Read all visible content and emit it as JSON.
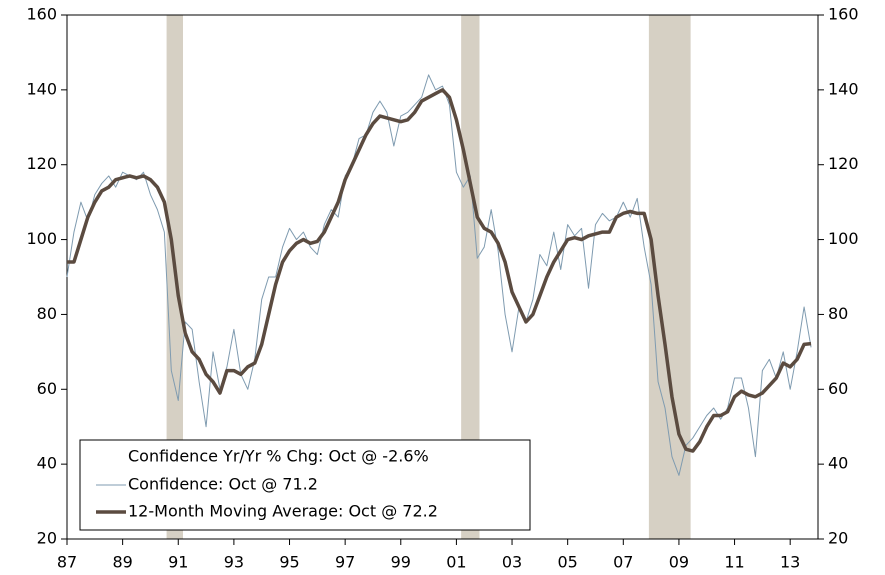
{
  "chart_data": {
    "type": "line",
    "x": [
      1987,
      1987.25,
      1987.5,
      1987.75,
      1988,
      1988.25,
      1988.5,
      1988.75,
      1989,
      1989.25,
      1989.5,
      1989.75,
      1990,
      1990.25,
      1990.5,
      1990.75,
      1991,
      1991.25,
      1991.5,
      1991.75,
      1992,
      1992.25,
      1992.5,
      1992.75,
      1993,
      1993.25,
      1993.5,
      1993.75,
      1994,
      1994.25,
      1994.5,
      1994.75,
      1995,
      1995.25,
      1995.5,
      1995.75,
      1996,
      1996.25,
      1996.5,
      1996.75,
      1997,
      1997.25,
      1997.5,
      1997.75,
      1998,
      1998.25,
      1998.5,
      1998.75,
      1999,
      1999.25,
      1999.5,
      1999.75,
      2000,
      2000.25,
      2000.5,
      2000.75,
      2001,
      2001.25,
      2001.5,
      2001.75,
      2002,
      2002.25,
      2002.5,
      2002.75,
      2003,
      2003.25,
      2003.5,
      2003.75,
      2004,
      2004.25,
      2004.5,
      2004.75,
      2005,
      2005.25,
      2005.5,
      2005.75,
      2006,
      2006.25,
      2006.5,
      2006.75,
      2007,
      2007.25,
      2007.5,
      2007.75,
      2008,
      2008.25,
      2008.5,
      2008.75,
      2009,
      2009.25,
      2009.5,
      2009.75,
      2010,
      2010.25,
      2010.5,
      2010.75,
      2011,
      2011.25,
      2011.5,
      2011.75,
      2012,
      2012.25,
      2012.5,
      2012.75,
      2013,
      2013.25,
      2013.5,
      2013.75
    ],
    "legend_title": "Confidence Yr/Yr % Chg: Oct @ -2.6%",
    "series": [
      {
        "name": "Confidence: Oct @ 71.2",
        "color": "#7f9bb0",
        "width": 1,
        "values": [
          90,
          102,
          110,
          105,
          112,
          115,
          117,
          114,
          118,
          117,
          116,
          118,
          112,
          108,
          102,
          65,
          57,
          78,
          76,
          62,
          50,
          70,
          60,
          66,
          76,
          64,
          60,
          68,
          84,
          90,
          90,
          98,
          103,
          100,
          102,
          98,
          96,
          104,
          108,
          106,
          117,
          120,
          127,
          128,
          134,
          137,
          134,
          125,
          133,
          134,
          136,
          138,
          144,
          140,
          141,
          136,
          118,
          114,
          117,
          95,
          98,
          108,
          97,
          80,
          70,
          82,
          78,
          84,
          96,
          93,
          102,
          92,
          104,
          101,
          103,
          87,
          104,
          107,
          105,
          106,
          110,
          106,
          111,
          98,
          88,
          62,
          55,
          42,
          37,
          45,
          47,
          50,
          53,
          55,
          52,
          55,
          63,
          63,
          55,
          42,
          65,
          68,
          63,
          70,
          60,
          70,
          82,
          71.2
        ]
      },
      {
        "name": "12-Month Moving Average: Oct @ 72.2",
        "color": "#5b4b40",
        "width": 3.5,
        "values": [
          94,
          94,
          100,
          106,
          110,
          113,
          114,
          116,
          116.5,
          117,
          116.5,
          117,
          116,
          114,
          110,
          100,
          85,
          75,
          70,
          68,
          64,
          62,
          59,
          65,
          65,
          64,
          66,
          67,
          72,
          80,
          88,
          94,
          97,
          99,
          100,
          99,
          99.5,
          102,
          106,
          110,
          116,
          120,
          124,
          128,
          131,
          133,
          132.5,
          132,
          131.5,
          132,
          134,
          137,
          138,
          139,
          140,
          138,
          132,
          124,
          115,
          106,
          103,
          102,
          99,
          94,
          86,
          82,
          78,
          80,
          85,
          90,
          94,
          97,
          100,
          100.5,
          100,
          101,
          101.5,
          102,
          102,
          106,
          107,
          107.5,
          107,
          107,
          100,
          85,
          72,
          58,
          48,
          44,
          43.5,
          46,
          50,
          53,
          53,
          54,
          58,
          59.5,
          58.5,
          58,
          59,
          61,
          63,
          67,
          66,
          68,
          72,
          72.2
        ]
      }
    ],
    "shaded_regions": [
      [
        1990.58,
        1991.17
      ],
      [
        2001.17,
        2001.83
      ],
      [
        2007.92,
        2009.42
      ]
    ],
    "shade_color": "#d6d0c4",
    "xlim": [
      1987,
      2014
    ],
    "xticks": [
      {
        "value": 1987,
        "label": "87"
      },
      {
        "value": 1989,
        "label": "89"
      },
      {
        "value": 1991,
        "label": "91"
      },
      {
        "value": 1993,
        "label": "93"
      },
      {
        "value": 1995,
        "label": "95"
      },
      {
        "value": 1997,
        "label": "97"
      },
      {
        "value": 1999,
        "label": "99"
      },
      {
        "value": 2001,
        "label": "01"
      },
      {
        "value": 2003,
        "label": "03"
      },
      {
        "value": 2005,
        "label": "05"
      },
      {
        "value": 2007,
        "label": "07"
      },
      {
        "value": 2009,
        "label": "09"
      },
      {
        "value": 2011,
        "label": "11"
      },
      {
        "value": 2013,
        "label": "13"
      }
    ],
    "ylim": [
      20,
      160
    ],
    "yticks": [
      20,
      40,
      60,
      80,
      100,
      120,
      140,
      160
    ],
    "y2lim": [
      20,
      160
    ],
    "y2ticks": [
      20,
      40,
      60,
      80,
      100,
      120,
      140,
      160
    ],
    "legend": "lower left"
  }
}
